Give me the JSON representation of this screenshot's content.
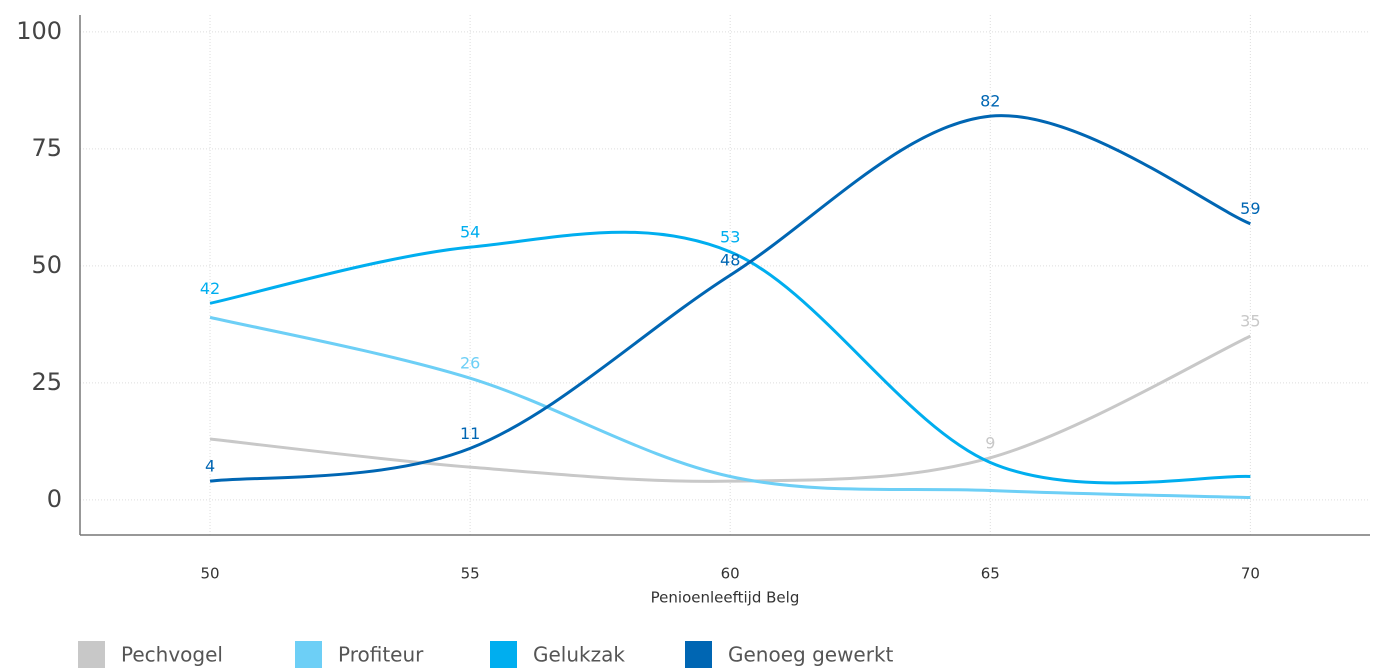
{
  "chart_data": {
    "type": "line",
    "x": [
      50,
      55,
      60,
      65,
      70
    ],
    "x_label": "Penioenleeftijd Belg",
    "xlim": [
      47.5,
      72.3
    ],
    "xticks": [
      50,
      55,
      60,
      65,
      70
    ],
    "ylim": [
      -7.5,
      103.6
    ],
    "yticks": [
      0,
      25,
      50,
      75,
      100
    ],
    "grid": true,
    "smooth": true,
    "legend": "bottom",
    "series": [
      {
        "name": "Pechvogel",
        "color": "#c8c8c8",
        "values": [
          13,
          7,
          4,
          9,
          35
        ],
        "value_labels": [
          null,
          null,
          null,
          "9",
          "35"
        ]
      },
      {
        "name": "Profiteur",
        "color": "#6dcff6",
        "values": [
          39,
          26,
          5,
          2,
          0.5
        ],
        "value_labels": [
          null,
          "26",
          null,
          null,
          null
        ]
      },
      {
        "name": "Gelukzak",
        "color": "#00aeef",
        "values": [
          42,
          54,
          53,
          8,
          5
        ],
        "value_labels": [
          "42",
          "54",
          "53",
          null,
          null
        ]
      },
      {
        "name": "Genoeg gewerkt",
        "color": "#0066b3",
        "values": [
          4,
          11,
          48,
          82,
          59
        ],
        "value_labels": [
          "4",
          "11",
          "48",
          "82",
          "59"
        ]
      }
    ]
  }
}
